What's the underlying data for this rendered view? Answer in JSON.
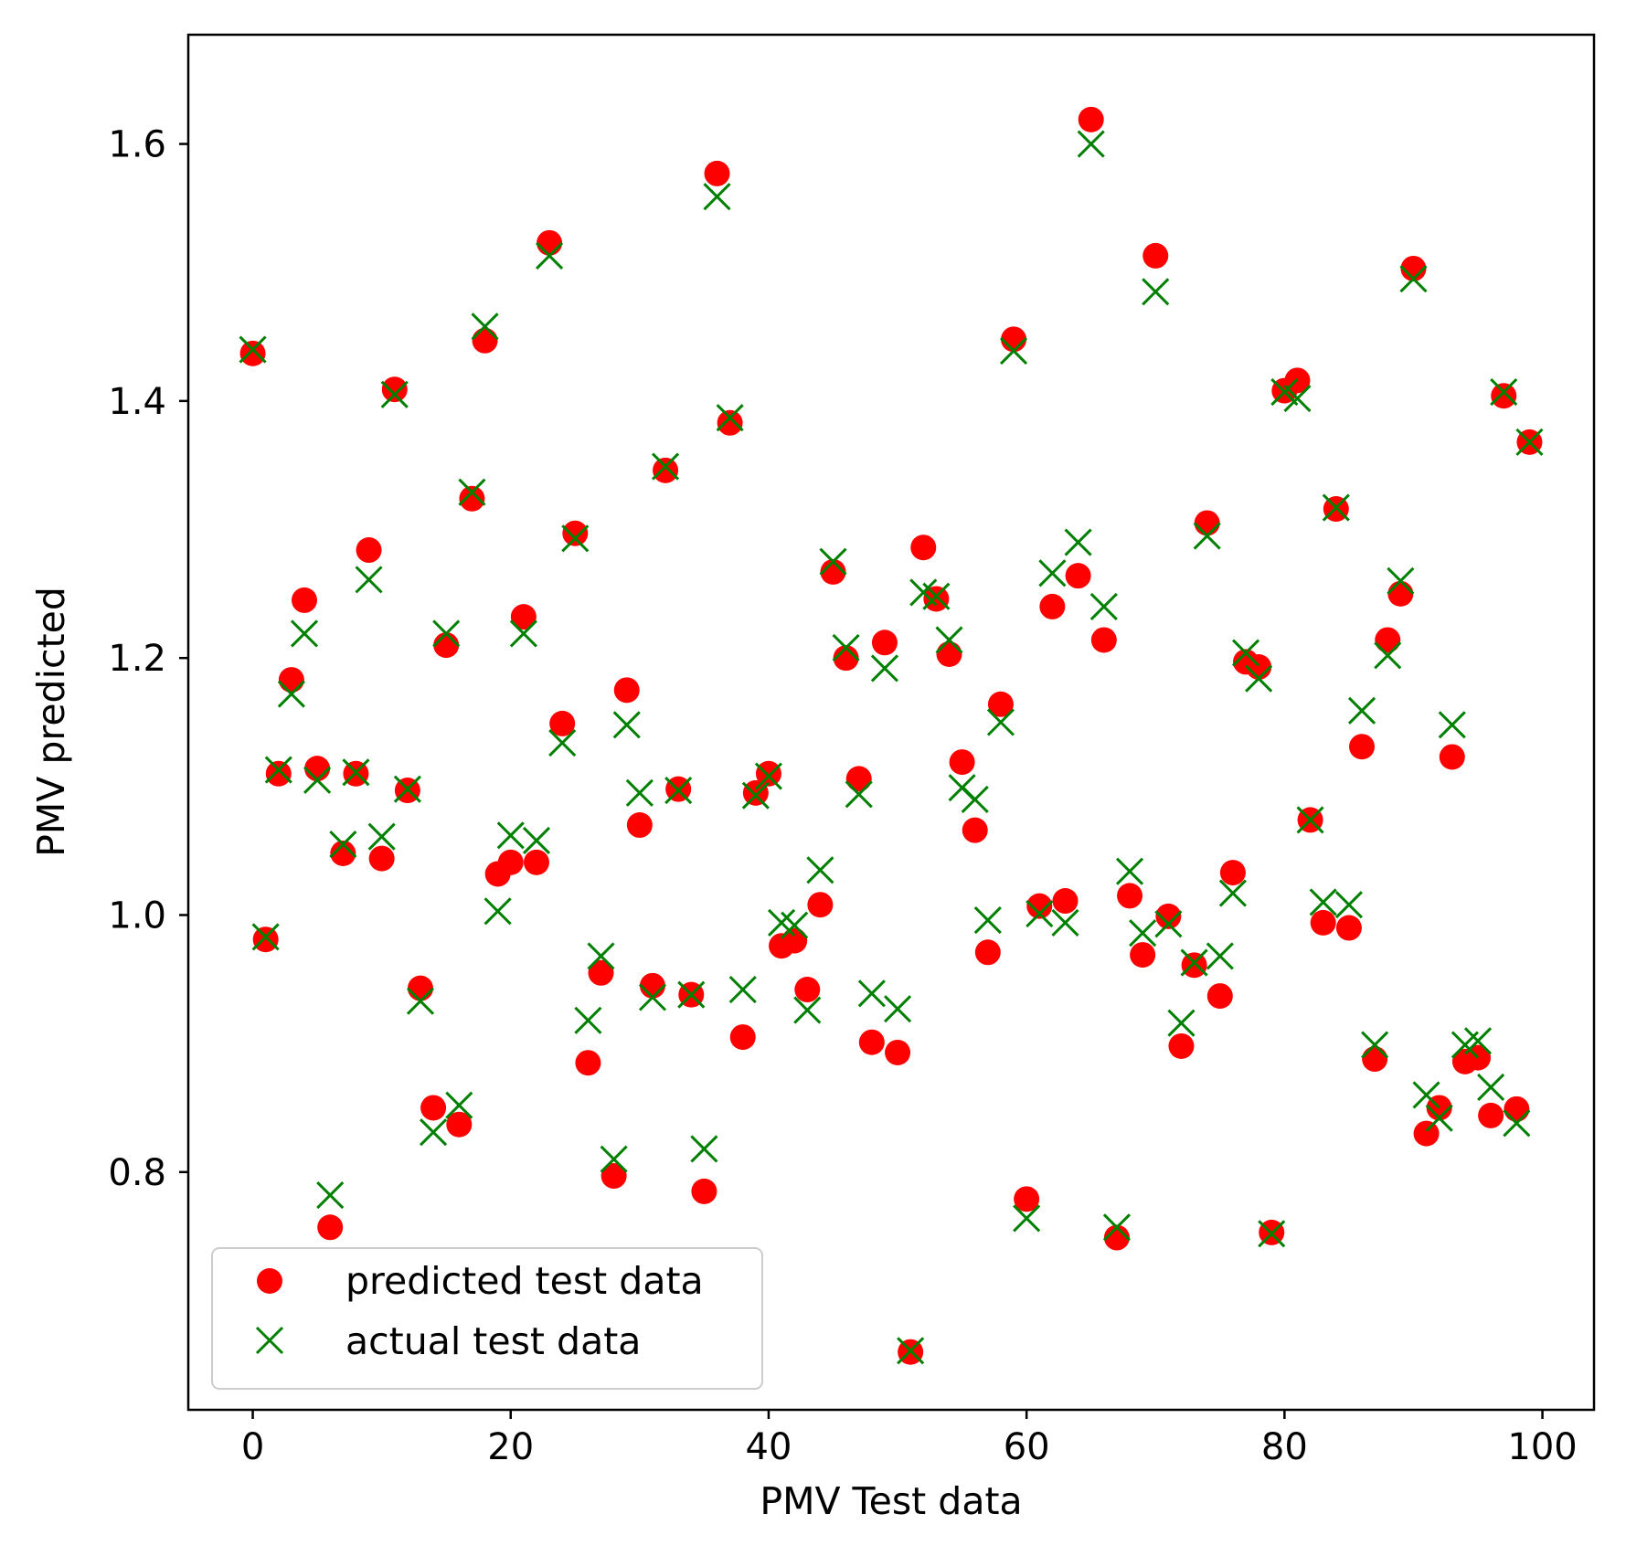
{
  "chart_data": {
    "type": "scatter",
    "xlabel": "PMV Test data",
    "ylabel": "PMV predicted",
    "xlim": [
      -5,
      104
    ],
    "ylim": [
      0.615,
      1.685
    ],
    "xticks": [
      0,
      20,
      40,
      60,
      80,
      100
    ],
    "yticks": [
      0.8,
      1.0,
      1.2,
      1.4,
      1.6
    ],
    "xtick_labels": [
      "0",
      "20",
      "40",
      "60",
      "80",
      "100"
    ],
    "ytick_labels": [
      "0.8",
      "1.0",
      "1.2",
      "1.4",
      "1.6"
    ],
    "legend_position": "lower-left",
    "series": [
      {
        "name": "predicted test data",
        "marker": "circle",
        "color": "#ff0000",
        "x": [
          0,
          1,
          2,
          3,
          4,
          5,
          6,
          7,
          8,
          9,
          10,
          11,
          12,
          13,
          14,
          15,
          16,
          17,
          18,
          19,
          20,
          21,
          22,
          23,
          24,
          25,
          26,
          27,
          28,
          29,
          30,
          31,
          32,
          33,
          34,
          35,
          36,
          37,
          38,
          39,
          40,
          41,
          42,
          43,
          44,
          45,
          46,
          47,
          48,
          49,
          50,
          51,
          52,
          53,
          54,
          55,
          56,
          57,
          58,
          59,
          60,
          61,
          62,
          63,
          64,
          65,
          66,
          67,
          68,
          69,
          70,
          71,
          72,
          73,
          74,
          75,
          76,
          77,
          78,
          79,
          80,
          81,
          82,
          83,
          84,
          85,
          86,
          87,
          88,
          89,
          90,
          91,
          92,
          93,
          94,
          95,
          96,
          97,
          98,
          99
        ],
        "y": [
          1.437,
          0.981,
          1.11,
          1.183,
          1.245,
          1.114,
          0.757,
          1.048,
          1.11,
          1.284,
          1.044,
          1.409,
          1.097,
          0.943,
          0.85,
          1.21,
          0.837,
          1.324,
          1.447,
          1.032,
          1.041,
          1.232,
          1.041,
          1.523,
          1.149,
          1.297,
          0.885,
          0.955,
          0.797,
          1.175,
          1.07,
          0.945,
          1.346,
          1.098,
          0.938,
          0.785,
          1.577,
          1.383,
          0.905,
          1.095,
          1.11,
          0.976,
          0.98,
          0.942,
          1.008,
          1.267,
          1.2,
          1.106,
          0.901,
          1.212,
          0.893,
          0.66,
          1.286,
          1.246,
          1.203,
          1.119,
          1.066,
          0.971,
          1.164,
          1.448,
          0.779,
          1.007,
          1.24,
          1.011,
          1.264,
          1.619,
          1.214,
          0.749,
          1.015,
          0.969,
          1.513,
          0.999,
          0.898,
          0.961,
          1.305,
          0.937,
          1.033,
          1.197,
          1.193,
          0.753,
          1.408,
          1.416,
          1.074,
          0.994,
          1.316,
          0.99,
          1.131,
          0.888,
          1.214,
          1.25,
          1.503,
          0.83,
          0.85,
          1.123,
          0.886,
          0.889,
          0.844,
          1.404,
          0.849,
          1.368
        ]
      },
      {
        "name": "actual test data",
        "marker": "x",
        "color": "#008000",
        "x": [
          0,
          1,
          2,
          3,
          4,
          5,
          6,
          7,
          8,
          9,
          10,
          11,
          12,
          13,
          14,
          15,
          16,
          17,
          18,
          19,
          20,
          21,
          22,
          23,
          24,
          25,
          26,
          27,
          28,
          29,
          30,
          31,
          32,
          33,
          34,
          35,
          36,
          37,
          38,
          39,
          40,
          41,
          42,
          43,
          44,
          45,
          46,
          47,
          48,
          49,
          50,
          51,
          52,
          53,
          54,
          55,
          56,
          57,
          58,
          59,
          60,
          61,
          62,
          63,
          64,
          65,
          66,
          67,
          68,
          69,
          70,
          71,
          72,
          73,
          74,
          75,
          76,
          77,
          78,
          79,
          80,
          81,
          82,
          83,
          84,
          85,
          86,
          87,
          88,
          89,
          90,
          91,
          92,
          93,
          94,
          95,
          96,
          97,
          98,
          99
        ],
        "y": [
          1.44,
          0.983,
          1.113,
          1.172,
          1.219,
          1.105,
          0.782,
          1.055,
          1.111,
          1.261,
          1.061,
          1.405,
          1.098,
          0.933,
          0.831,
          1.219,
          0.852,
          1.329,
          1.458,
          1.003,
          1.062,
          1.219,
          1.058,
          1.513,
          1.134,
          1.293,
          0.918,
          0.968,
          0.81,
          1.148,
          1.095,
          0.936,
          1.349,
          1.097,
          0.938,
          0.818,
          1.559,
          1.387,
          0.942,
          1.093,
          1.108,
          0.994,
          0.992,
          0.926,
          1.035,
          1.275,
          1.208,
          1.094,
          0.939,
          1.192,
          0.927,
          0.661,
          1.251,
          1.248,
          1.214,
          1.099,
          1.09,
          0.996,
          1.15,
          1.439,
          0.764,
          1.001,
          1.266,
          0.994,
          1.29,
          1.6,
          1.24,
          0.757,
          1.034,
          0.986,
          1.485,
          0.993,
          0.916,
          0.963,
          1.295,
          0.968,
          1.017,
          1.204,
          1.184,
          0.752,
          1.407,
          1.402,
          1.074,
          1.01,
          1.317,
          1.008,
          1.159,
          0.899,
          1.202,
          1.26,
          1.495,
          0.86,
          0.842,
          1.148,
          0.899,
          0.902,
          0.866,
          1.407,
          0.838,
          1.368
        ]
      }
    ]
  }
}
